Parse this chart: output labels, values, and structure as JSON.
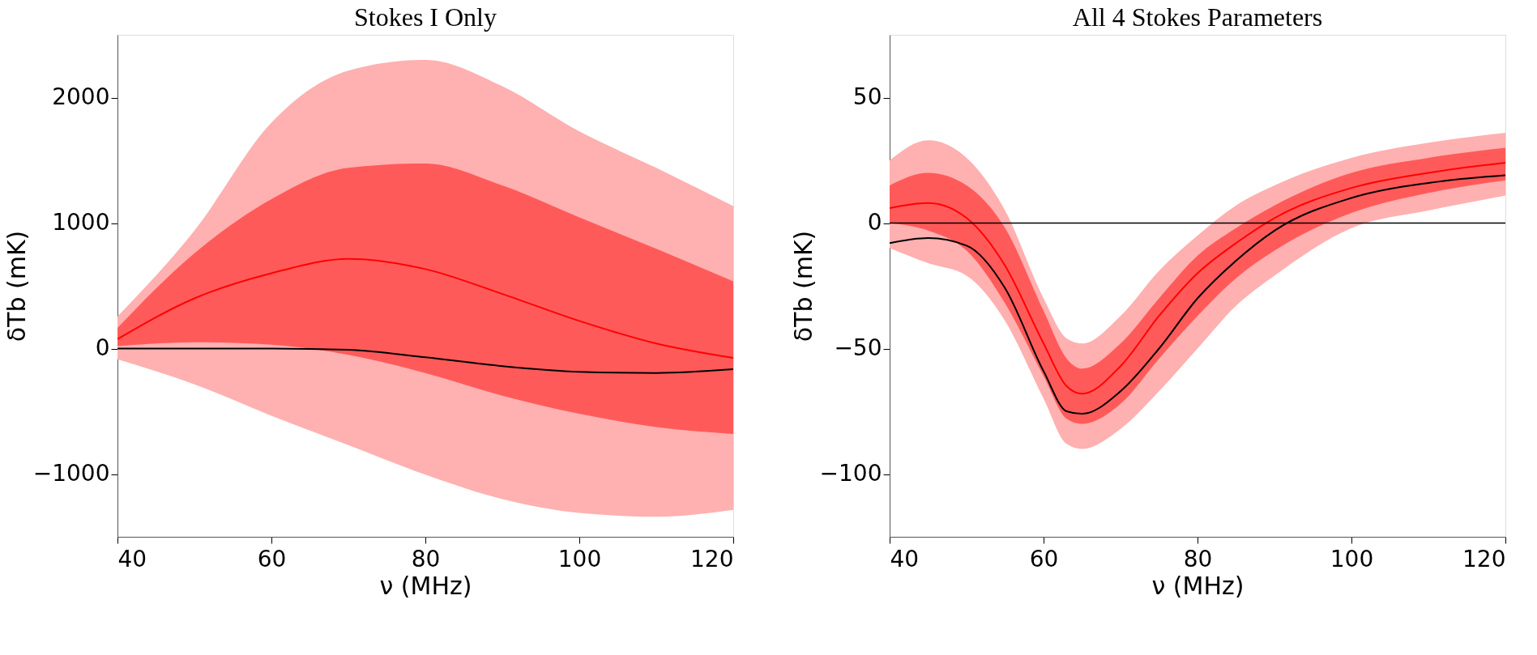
{
  "chart_data": [
    {
      "type": "line",
      "title": "Stokes I Only",
      "xlabel": "ν (MHz)",
      "ylabel": "δTb (mK)",
      "x": [
        40,
        50,
        60,
        70,
        80,
        90,
        100,
        110,
        120
      ],
      "series": [
        {
          "color": "#ffb0b0",
          "values": [
            null,
            null,
            null,
            null,
            null,
            null,
            null,
            null,
            null
          ],
          "lower": [
            -85,
            -285,
            -535,
            -770,
            -1005,
            -1200,
            -1310,
            -1340,
            -1285
          ],
          "upper": [
            255,
            940,
            1800,
            2215,
            2300,
            2090,
            1730,
            1440,
            1135
          ]
        },
        {
          "color": "#ff0000",
          "values": [
            75,
            400,
            600,
            715,
            633,
            435,
            220,
            40,
            -75
          ],
          "lower": [
            20,
            50,
            30,
            -50,
            -195,
            -375,
            -520,
            -625,
            -680
          ],
          "upper": [
            165,
            760,
            1190,
            1440,
            1475,
            1300,
            1045,
            795,
            535
          ]
        },
        {
          "color": "#000000",
          "values": [
            0,
            0,
            0,
            -10,
            -70,
            -140,
            -185,
            -195,
            -165
          ]
        }
      ],
      "xlim": [
        40,
        120
      ],
      "ylim": [
        -1500,
        2500
      ],
      "xticks": [
        40,
        60,
        80,
        100,
        120
      ],
      "yticks": [
        -1000,
        0,
        1000,
        2000
      ],
      "grid": false
    },
    {
      "type": "line",
      "title": "All 4 Stokes Parameters",
      "xlabel": "ν (MHz)",
      "ylabel": "δTb (mK)",
      "x": [
        40,
        45,
        50,
        55,
        60,
        63,
        65,
        70,
        75,
        80,
        85,
        90,
        100,
        110,
        120
      ],
      "series": [
        {
          "color": "#ffb0b0",
          "values": [
            null,
            null,
            null,
            null,
            null,
            null,
            null,
            null,
            null,
            null,
            null,
            null,
            null,
            null,
            null
          ],
          "lower": [
            -10,
            -16,
            -21,
            -39,
            -70,
            -88,
            -90,
            -82,
            -67,
            -50,
            -33,
            -21,
            -2,
            5,
            11
          ],
          "upper": [
            25,
            33,
            26,
            5,
            -30,
            -46,
            -48,
            -37,
            -19,
            -5,
            7,
            15,
            26,
            32,
            36
          ]
        },
        {
          "color": "#ff0000",
          "values": [
            6,
            8,
            2,
            -17,
            -48,
            -65,
            -68,
            -57,
            -37,
            -20,
            -8,
            2,
            14,
            20,
            24
          ],
          "lower": [
            0,
            -3,
            -11,
            -32,
            -61,
            -78,
            -80,
            -72,
            -54,
            -37,
            -22,
            -11,
            4,
            12,
            17
          ],
          "upper": [
            15,
            20,
            15,
            -2,
            -35,
            -54,
            -58,
            -48,
            -30,
            -13,
            -2,
            7,
            20,
            26,
            30
          ]
        },
        {
          "color": "#000000",
          "values": [
            -8,
            -6,
            -9,
            -26,
            -59,
            -75,
            -76,
            -67,
            -50,
            -30,
            -15,
            -3,
            10,
            16,
            19
          ]
        }
      ],
      "ref_lines": [
        {
          "axis": "y",
          "value": 0,
          "color": "#000000"
        }
      ],
      "xlim": [
        40,
        120
      ],
      "ylim": [
        -125,
        75
      ],
      "xticks": [
        40,
        60,
        80,
        100,
        120
      ],
      "yticks": [
        -100,
        -50,
        0,
        50
      ],
      "grid": false
    }
  ]
}
